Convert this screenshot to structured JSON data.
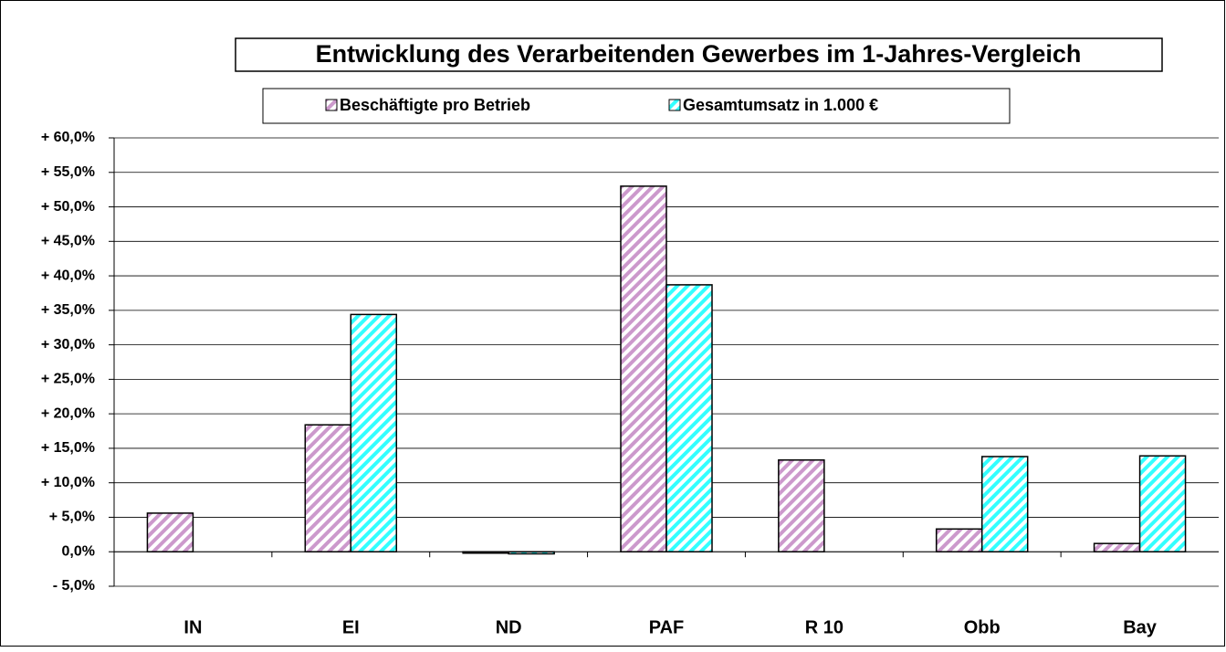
{
  "chart_data": {
    "type": "bar",
    "title": "Entwicklung des Verarbeitenden Gewerbes im 1-Jahres-Vergleich",
    "categories": [
      "IN",
      "EI",
      "ND",
      "PAF",
      "R 10",
      "Obb",
      "Bay"
    ],
    "series": [
      {
        "name": "Beschäftigte pro Betrieb",
        "color": "#cc99cc",
        "values": [
          5.6,
          18.4,
          -0.2,
          53.0,
          13.3,
          3.3,
          1.2
        ]
      },
      {
        "name": "Gesamtumsatz in 1.000 €",
        "color": "#33ffff",
        "values": [
          null,
          34.4,
          -0.3,
          38.7,
          null,
          13.8,
          13.9
        ]
      }
    ],
    "ylim": [
      -5,
      60
    ],
    "yticks": [
      {
        "value": -5,
        "label": "- 5,0%"
      },
      {
        "value": 0,
        "label": "0,0%"
      },
      {
        "value": 5,
        "label": "+ 5,0%"
      },
      {
        "value": 10,
        "label": "+ 10,0%"
      },
      {
        "value": 15,
        "label": "+ 15,0%"
      },
      {
        "value": 20,
        "label": "+ 20,0%"
      },
      {
        "value": 25,
        "label": "+ 25,0%"
      },
      {
        "value": 30,
        "label": "+ 30,0%"
      },
      {
        "value": 35,
        "label": "+ 35,0%"
      },
      {
        "value": 40,
        "label": "+ 40,0%"
      },
      {
        "value": 45,
        "label": "+ 45,0%"
      },
      {
        "value": 50,
        "label": "+ 50,0%"
      },
      {
        "value": 55,
        "label": "+ 55,0%"
      },
      {
        "value": 60,
        "label": "+ 60,0%"
      }
    ],
    "grid": true
  }
}
